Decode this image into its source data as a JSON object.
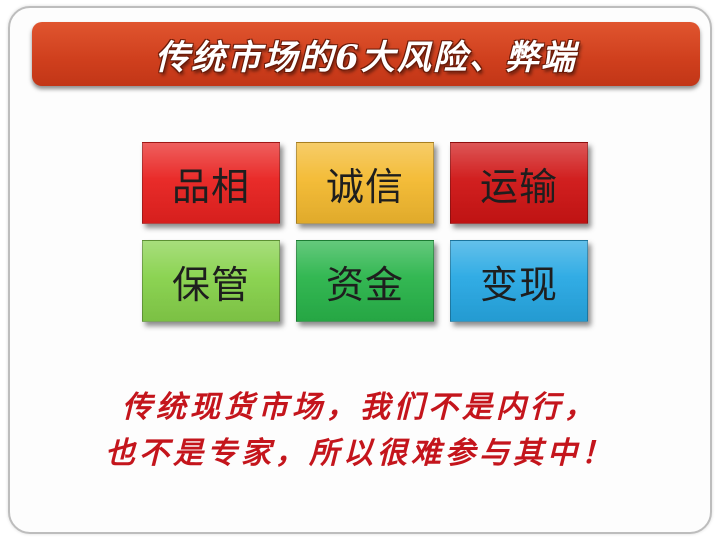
{
  "title": "传统市场的6大风险、弊端",
  "tiles": [
    {
      "label": "品相",
      "color": "#e8211f"
    },
    {
      "label": "诚信",
      "color": "#f3b92f"
    },
    {
      "label": "运输",
      "color": "#cf1414"
    },
    {
      "label": "保管",
      "color": "#86d14a"
    },
    {
      "label": "资金",
      "color": "#29b44a"
    },
    {
      "label": "变现",
      "color": "#27a8e3"
    }
  ],
  "footer": {
    "line1": "传统现货市场，我们不是内行，",
    "line2": "也不是专家，所以很难参与其中！",
    "color": "#c4151c"
  },
  "colors": {
    "title_bar": "#d3441f",
    "background": "#ffffff"
  }
}
